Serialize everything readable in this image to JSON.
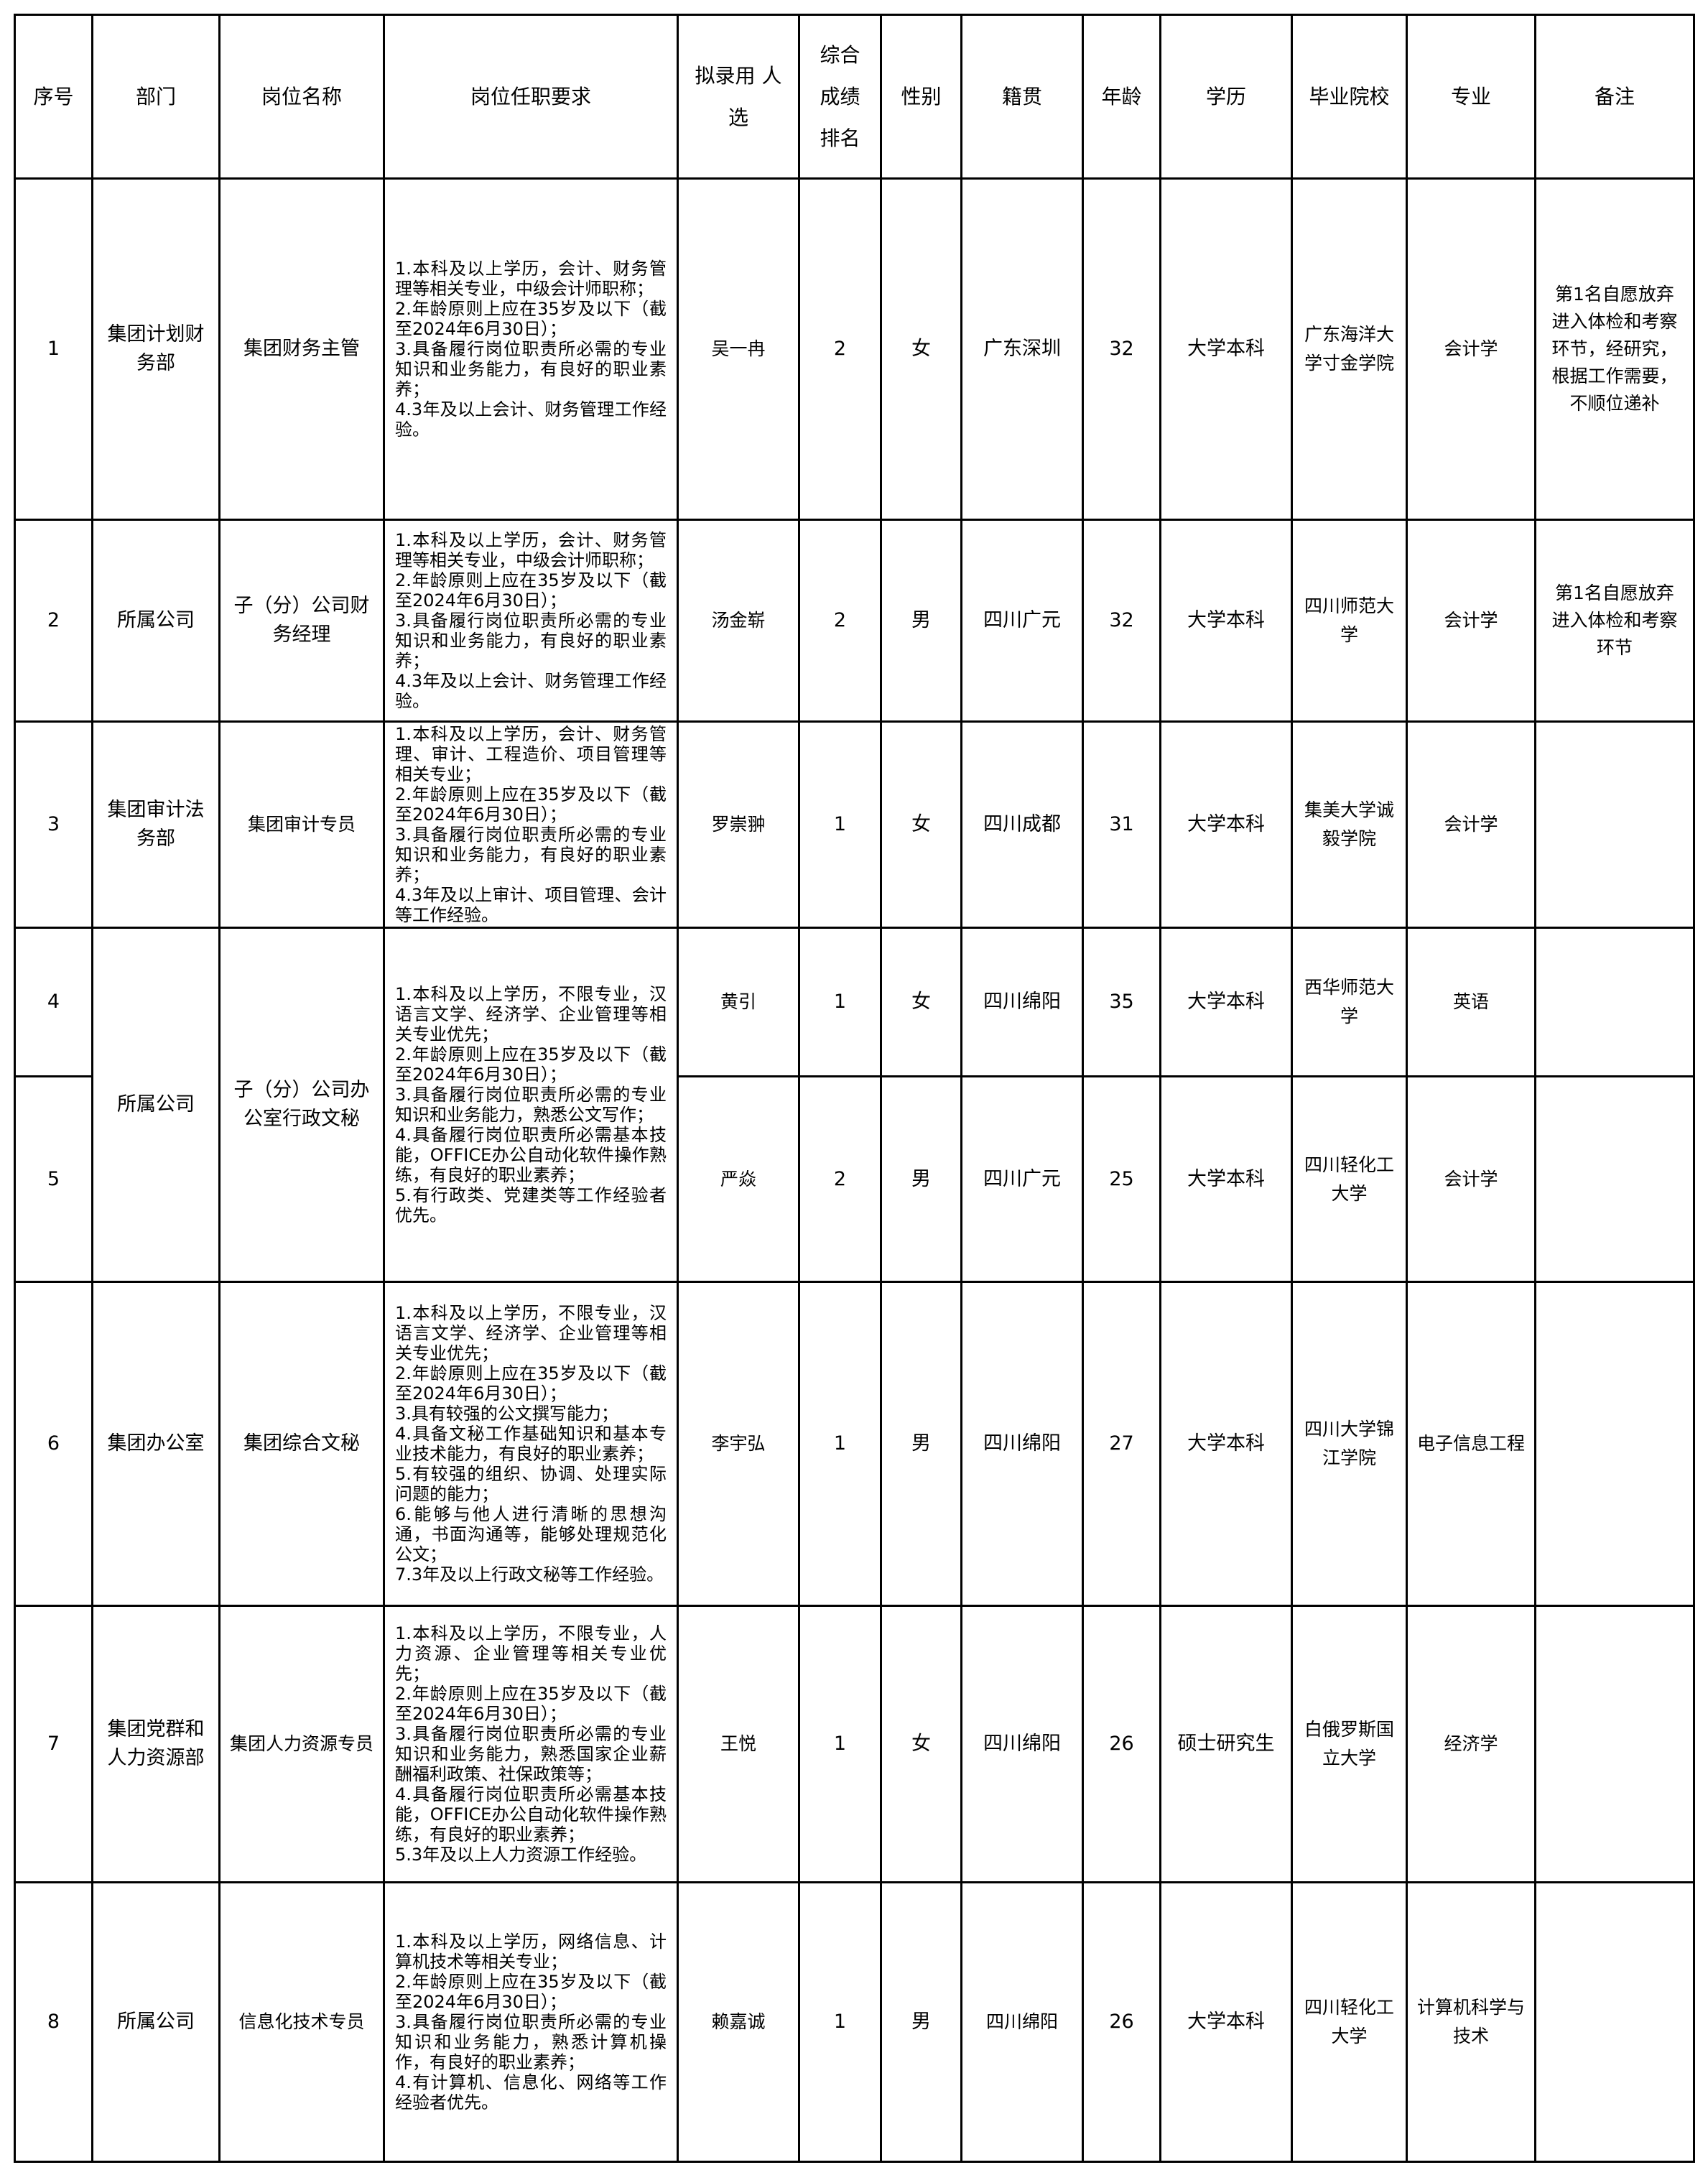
{
  "headers": [
    "序号",
    "部门",
    "岗位名称",
    "岗位任职要求",
    "拟录用 人选",
    "综合成绩排名",
    "性别",
    "籍贯",
    "年龄",
    "学历",
    "毕业院校",
    "专业",
    "备注"
  ],
  "rows": [
    {
      "no": "1",
      "dept": "集团计划财务部",
      "title": "集团财务主管",
      "req": "1.本科及以上学历，会计、财务管理等相关专业，中级会计师职称；\n2.年龄原则上应在35岁及以下（截至2024年6月30日）；\n3.具备履行岗位职责所必需的专业知识和业务能力，有良好的职业素养；\n4.3年及以上会计、财务管理工作经验。",
      "name": "吴一冉",
      "rank": "2",
      "gender": "女",
      "origin": "广东深圳",
      "age": "32",
      "edu": "大学本科",
      "school": "广东海洋大学寸金学院",
      "major": "会计学",
      "remark": "第1名自愿放弃进入体检和考察环节，经研究，根据工作需要，不顺位递补"
    },
    {
      "no": "2",
      "dept": "所属公司",
      "title": "子（分）公司财务经理",
      "req": "1.本科及以上学历，会计、财务管理等相关专业，中级会计师职称；\n2.年龄原则上应在35岁及以下（截至2024年6月30日）；\n3.具备履行岗位职责所必需的专业知识和业务能力，有良好的职业素养；\n4.3年及以上会计、财务管理工作经验。",
      "name": "汤金崭",
      "rank": "2",
      "gender": "男",
      "origin": "四川广元",
      "age": "32",
      "edu": "大学本科",
      "school": "四川师范大学",
      "major": "会计学",
      "remark": "第1名自愿放弃进入体检和考察环节"
    },
    {
      "no": "3",
      "dept": "集团审计法务部",
      "title": "集团审计专员",
      "req": "1.本科及以上学历，会计、财务管理、审计、工程造价、项目管理等相关专业；\n2.年龄原则上应在35岁及以下（截至2024年6月30日）；\n3.具备履行岗位职责所必需的专业知识和业务能力，有良好的职业素养；\n4.3年及以上审计、项目管理、会计等工作经验。",
      "name": "罗崇翀",
      "rank": "1",
      "gender": "女",
      "origin": "四川成都",
      "age": "31",
      "edu": "大学本科",
      "school": "集美大学诚毅学院",
      "major": "会计学",
      "remark": ""
    },
    {
      "no": "4",
      "dept": "所属公司",
      "title": "子（分）公司办公室行政文秘",
      "req": "1.本科及以上学历，不限专业，汉语言文学、经济学、企业管理等相关专业优先；\n2.年龄原则上应在35岁及以下（截至2024年6月30日）；\n3.具备履行岗位职责所必需的专业知识和业务能力，熟悉公文写作；\n4.具备履行岗位职责所必需基本技能，OFFICE办公自动化软件操作熟练，有良好的职业素养；\n5.有行政类、党建类等工作经验者优先。",
      "name": "黄引",
      "rank": "1",
      "gender": "女",
      "origin": "四川绵阳",
      "age": "35",
      "edu": "大学本科",
      "school": "西华师范大学",
      "major": "英语",
      "remark": ""
    },
    {
      "no": "5",
      "name": "严焱",
      "rank": "2",
      "gender": "男",
      "origin": "四川广元",
      "age": "25",
      "edu": "大学本科",
      "school": "四川轻化工大学",
      "major": "会计学",
      "remark": ""
    },
    {
      "no": "6",
      "dept": "集团办公室",
      "title": "集团综合文秘",
      "req": "1.本科及以上学历，不限专业，汉语言文学、经济学、企业管理等相关专业优先；\n2.年龄原则上应在35岁及以下（截至2024年6月30日）；\n3.具有较强的公文撰写能力；\n4.具备文秘工作基础知识和基本专业技术能力，有良好的职业素养；\n5.有较强的组织、协调、处理实际问题的能力；\n6.能够与他人进行清晰的思想沟通，书面沟通等，能够处理规范化公文；\n7.3年及以上行政文秘等工作经验。",
      "name": "李宇弘",
      "rank": "1",
      "gender": "男",
      "origin": "四川绵阳",
      "age": "27",
      "edu": "大学本科",
      "school": "四川大学锦江学院",
      "major": "电子信息工程",
      "remark": ""
    },
    {
      "no": "7",
      "dept": "集团党群和人力资源部",
      "title": "集团人力资源专员",
      "req": "1.本科及以上学历，不限专业，人力资源、企业管理等相关专业优先；\n2.年龄原则上应在35岁及以下（截至2024年6月30日）；\n3.具备履行岗位职责所必需的专业知识和业务能力，熟悉国家企业薪酬福利政策、社保政策等；\n4.具备履行岗位职责所必需基本技能，OFFICE办公自动化软件操作熟练，有良好的职业素养；\n5.3年及以上人力资源工作经验。",
      "name": "王悦",
      "rank": "1",
      "gender": "女",
      "origin": "四川绵阳",
      "age": "26",
      "edu": "硕士研究生",
      "school": "白俄罗斯国立大学",
      "major": "经济学",
      "remark": ""
    },
    {
      "no": "8",
      "dept": "所属公司",
      "title": "信息化技术专员",
      "req": "1.本科及以上学历，网络信息、计算机技术等相关专业；\n2.年龄原则上应在35岁及以下（截至2024年6月30日）；\n3.具备履行岗位职责所必需的专业知识和业务能力，熟悉计算机操作，有良好的职业素养；\n4.有计算机、信息化、网络等工作经验者优先。",
      "name": "赖嘉诚",
      "rank": "1",
      "gender": "男",
      "origin": "四川绵阳",
      "age": "26",
      "edu": "大学本科",
      "school": "四川轻化工大学",
      "major": "计算机科学与技术",
      "remark": ""
    }
  ]
}
